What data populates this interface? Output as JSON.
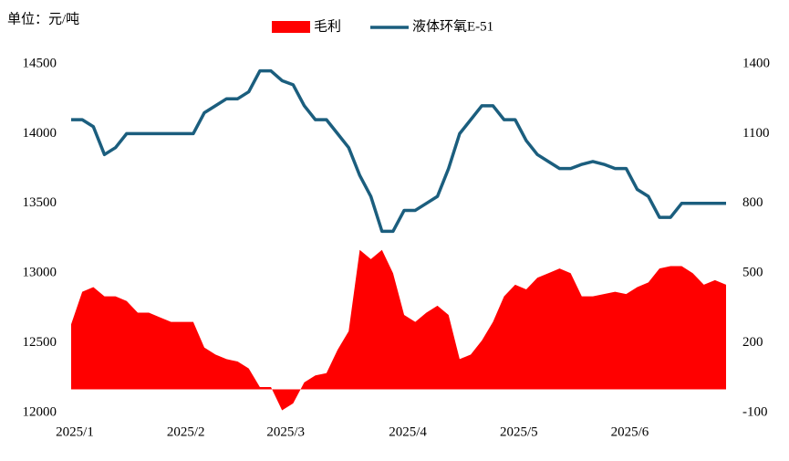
{
  "chart_data": {
    "type": "line-area",
    "subtitle": "单位：元/吨",
    "categories": [
      "2025/1",
      null,
      null,
      null,
      null,
      null,
      null,
      null,
      null,
      null,
      "2025/2",
      null,
      null,
      null,
      null,
      null,
      null,
      null,
      null,
      "2025/3",
      null,
      null,
      null,
      null,
      null,
      null,
      null,
      null,
      null,
      null,
      "2025/4",
      null,
      null,
      null,
      null,
      null,
      null,
      null,
      null,
      null,
      "2025/5",
      null,
      null,
      null,
      null,
      null,
      null,
      null,
      null,
      null,
      "2025/6",
      null,
      null,
      null,
      null,
      null,
      null,
      null,
      null,
      null
    ],
    "series": [
      {
        "name": "毛利",
        "type": "area",
        "axis": "y2",
        "color": "#ff0000",
        "values": [
          280,
          420,
          440,
          400,
          400,
          380,
          330,
          330,
          310,
          290,
          290,
          290,
          180,
          150,
          130,
          120,
          90,
          10,
          10,
          -90,
          -60,
          30,
          60,
          70,
          170,
          250,
          600,
          560,
          600,
          500,
          320,
          290,
          330,
          360,
          320,
          130,
          150,
          210,
          290,
          400,
          450,
          430,
          480,
          500,
          520,
          500,
          400,
          400,
          410,
          420,
          410,
          440,
          460,
          520,
          530,
          530,
          500,
          450,
          470,
          450
        ]
      },
      {
        "name": "液体环氧E-51",
        "type": "line",
        "axis": "y",
        "color": "#1b5e7e",
        "values": [
          14100,
          14100,
          14050,
          13850,
          13900,
          14000,
          14000,
          14000,
          14000,
          14000,
          14000,
          14000,
          14150,
          14200,
          14250,
          14250,
          14300,
          14450,
          14450,
          14380,
          14350,
          14200,
          14100,
          14100,
          14000,
          13900,
          13700,
          13550,
          13300,
          13300,
          13450,
          13450,
          13500,
          13550,
          13750,
          14000,
          14100,
          14200,
          14200,
          14100,
          14100,
          13950,
          13850,
          13800,
          13750,
          13750,
          13780,
          13800,
          13780,
          13750,
          13750,
          13600,
          13550,
          13400,
          13400,
          13500,
          13500,
          13500,
          13500,
          13500
        ]
      }
    ],
    "ylim": [
      12000,
      14500
    ],
    "yticks": [
      12000,
      12500,
      13000,
      13500,
      14000,
      14500
    ],
    "y2lim": [
      -100,
      1400
    ],
    "y2ticks": [
      -100,
      200,
      500,
      800,
      1100,
      1400
    ]
  }
}
